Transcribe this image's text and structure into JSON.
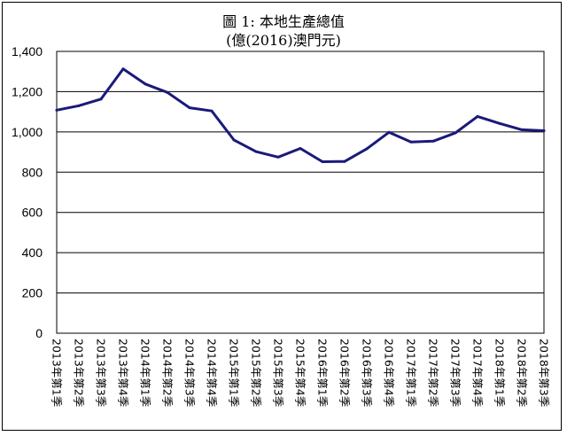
{
  "chart_data": {
    "type": "line",
    "title": "圖 1: 本地生產總值",
    "subtitle": "(億(2016)澳門元)",
    "xlabel": "",
    "ylabel": "",
    "ylim": [
      0,
      1400
    ],
    "yticks": [
      0,
      200,
      400,
      600,
      800,
      1000,
      1200,
      1400
    ],
    "ytick_labels": [
      "0",
      "200",
      "400",
      "600",
      "800",
      "1,000",
      "1,200",
      "1,400"
    ],
    "grid": true,
    "legend": "none",
    "categories": [
      "2013年第1季",
      "2013年第2季",
      "2013年第3季",
      "2013年第4季",
      "2014年第1季",
      "2014年第2季",
      "2014年第3季",
      "2014年第4季",
      "2015年第1季",
      "2015年第2季",
      "2015年第3季",
      "2015年第4季",
      "2016年第1季",
      "2016年第2季",
      "2016年第3季",
      "2016年第4季",
      "2017年第1季",
      "2017年第2季",
      "2017年第3季",
      "2017年第4季",
      "2018年第1季",
      "2018年第2季",
      "2018年第3季"
    ],
    "series": [
      {
        "color": "#1a1a7a",
        "values": [
          1108,
          1130,
          1163,
          1313,
          1238,
          1196,
          1120,
          1104,
          960,
          902,
          875,
          918,
          852,
          853,
          916,
          998,
          950,
          954,
          995,
          1077,
          1042,
          1011,
          1006
        ]
      }
    ]
  }
}
